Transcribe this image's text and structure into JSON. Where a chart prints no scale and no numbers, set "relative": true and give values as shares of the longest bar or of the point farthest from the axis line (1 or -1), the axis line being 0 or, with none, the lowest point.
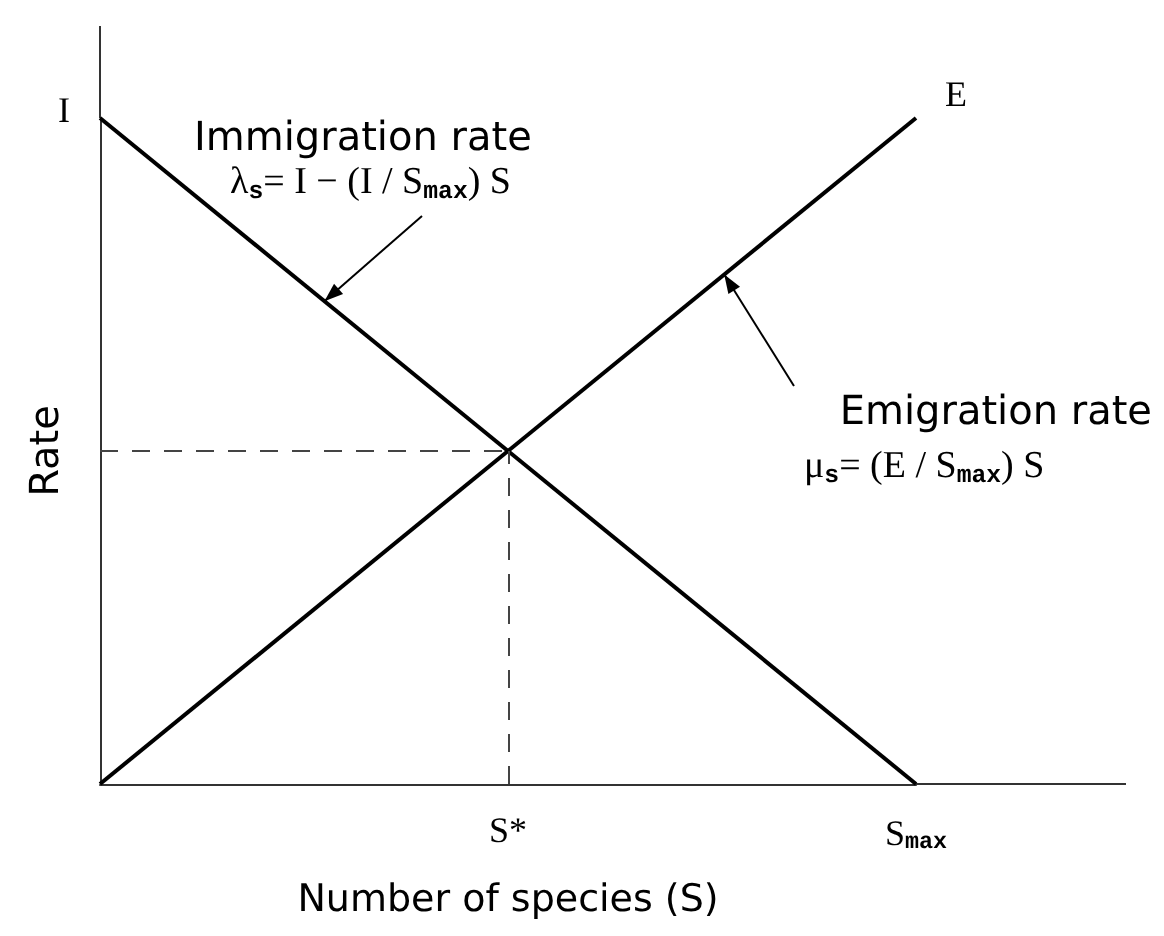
{
  "chart_data": {
    "type": "line",
    "relative": true,
    "categories": [
      null,
      "S*",
      "S$_{max}$"
    ],
    "xlabel": "Number of species (S)",
    "ylabel": "Rate",
    "series": [
      {
        "color": "#000000",
        "values": [
          1,
          0.5,
          0
        ]
      },
      {
        "color": "#000000",
        "values": [
          0,
          0.5,
          1
        ]
      }
    ],
    "ref_lines": [
      {
        "axis": "y",
        "value": 0.5,
        "line_style": "dashed"
      },
      {
        "axis": "x",
        "value": "S*",
        "line_style": "dashed"
      }
    ],
    "annotations": [
      "Immigration rate",
      "λ$_{s}$= I − (I / S$_{max}$) S",
      "Emigration rate",
      "μ$_{s}$= (E / S$_{max}$) S",
      "I",
      {
        "text": "E",
        "x": "S$_{max}$",
        "y": 1
      }
    ],
    "marker": "none",
    "line_style": "solid",
    "grid": false,
    "tick_labels": "x"
  }
}
